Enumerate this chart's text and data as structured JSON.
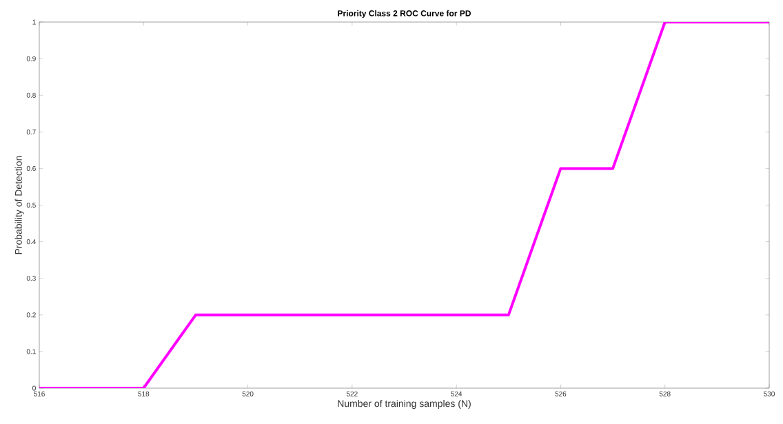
{
  "chart_data": {
    "type": "line",
    "title": "Priority Class 2 ROC Curve for PD",
    "xlabel": "Number of training samples (N)",
    "ylabel": "Probability of Detection",
    "x": [
      516,
      517,
      518,
      519,
      520,
      521,
      522,
      523,
      524,
      525,
      526,
      527,
      528,
      529,
      530
    ],
    "values": [
      0,
      0,
      0,
      0.2,
      0.2,
      0.2,
      0.2,
      0.2,
      0.2,
      0.2,
      0.6,
      0.6,
      1,
      1,
      1
    ],
    "color": "#ff00ff",
    "xlim": [
      516,
      530
    ],
    "ylim": [
      0,
      1
    ],
    "xticks": [
      516,
      518,
      520,
      522,
      524,
      526,
      528,
      530
    ],
    "yticks": [
      0,
      0.1,
      0.2,
      0.3,
      0.4,
      0.5,
      0.6,
      0.7,
      0.8,
      0.9,
      1
    ]
  }
}
